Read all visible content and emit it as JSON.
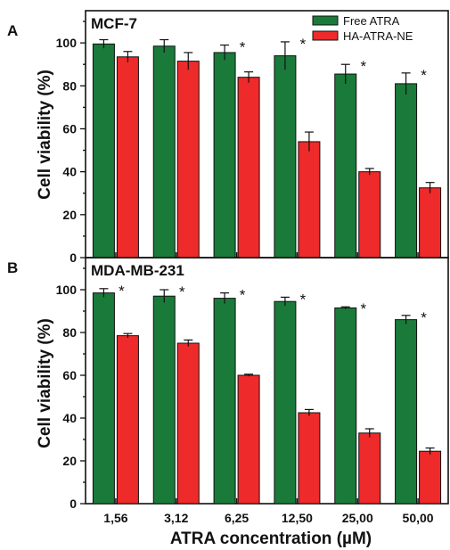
{
  "figure": {
    "xlabel": "ATRA concentration (µM)",
    "ylabel": "Cell viability (%)"
  },
  "colors": {
    "free_atra": "#1a7a3a",
    "ha_atra_ne": "#ee2a2a"
  },
  "chart_data": [
    {
      "type": "bar",
      "panel_letter": "A",
      "title": "MCF-7",
      "categories": [
        "1,56",
        "3,12",
        "6,25",
        "12,50",
        "25,00",
        "50,00"
      ],
      "series": [
        {
          "name": "Free ATRA",
          "values": [
            99.5,
            98.5,
            95.5,
            94,
            85.5,
            81
          ],
          "errors": [
            2,
            3,
            3.5,
            6.5,
            4.5,
            5
          ],
          "significance": [
            "",
            "",
            "*",
            "*",
            "*",
            "*"
          ]
        },
        {
          "name": "HA-ATRA-NE",
          "values": [
            93.5,
            91.5,
            84,
            54,
            40,
            32.5
          ],
          "errors": [
            2.5,
            4,
            2.5,
            4.5,
            1.5,
            2.5
          ]
        }
      ],
      "ylim": [
        0,
        115
      ],
      "yticks": [
        0,
        20,
        40,
        60,
        80,
        100
      ],
      "legend": "top-right",
      "grid": false
    },
    {
      "type": "bar",
      "panel_letter": "B",
      "title": "MDA-MB-231",
      "categories": [
        "1,56",
        "3,12",
        "6,25",
        "12,50",
        "25,00",
        "50,00"
      ],
      "series": [
        {
          "name": "Free ATRA",
          "values": [
            98.5,
            97,
            96,
            94.5,
            91.5,
            86
          ],
          "errors": [
            2,
            3,
            2.5,
            2,
            0.5,
            2
          ],
          "significance": [
            "*",
            "*",
            "*",
            "*",
            "*",
            "*"
          ]
        },
        {
          "name": "HA-ATRA-NE",
          "values": [
            78.5,
            75,
            60,
            42.5,
            33,
            24.5
          ],
          "errors": [
            1,
            1.5,
            0.5,
            1.5,
            2,
            1.5
          ]
        }
      ],
      "ylim": [
        0,
        115
      ],
      "yticks": [
        0,
        20,
        40,
        60,
        80,
        100
      ],
      "grid": false
    }
  ]
}
